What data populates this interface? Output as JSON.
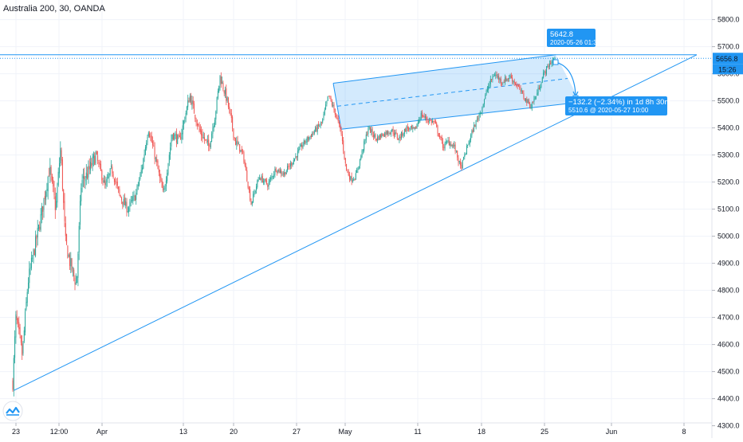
{
  "symbol": {
    "title": "Australia 200, 30, OANDA"
  },
  "colors": {
    "up": "#26a69a",
    "down": "#ef5350",
    "line": "#2196f3",
    "grid": "#f0f3fa",
    "text": "#131722",
    "price_tag": "#2196f3"
  },
  "icons": {
    "logo": "tradingview-logo-icon"
  },
  "price_axis": {
    "ticks": [
      "5800.0",
      "5700.0",
      "5600.0",
      "5500.0",
      "5400.0",
      "5300.0",
      "5200.0",
      "5100.0",
      "5000.0",
      "4900.0",
      "4800.0",
      "4700.0",
      "4600.0",
      "4500.0",
      "4400.0",
      "4300.0"
    ],
    "last_price": "5656.8",
    "countdown": "15:26"
  },
  "time_axis": {
    "ticks": [
      "23",
      "12:00",
      "Apr",
      "13",
      "20",
      "27",
      "May",
      "11",
      "18",
      "25",
      "Jun",
      "8"
    ]
  },
  "annotations": {
    "start_price": "5642.8",
    "start_time": "2020-05-26 01:30",
    "change": "−132.2 (−2.34%) in 1d 8h 30m",
    "end_label": "5510.6 @ 2020-05-27  10:00"
  },
  "chart_data": {
    "type": "candlestick",
    "title": "Australia 200, 30, OANDA",
    "ylim": [
      4300,
      5850
    ],
    "grid": true,
    "x": [
      "Mar 23",
      "Mar 26",
      "Mar 30",
      "Apr 3",
      "Apr 8",
      "Apr 14",
      "Apr 17",
      "Apr 21",
      "Apr 24",
      "Apr 29",
      "May 1",
      "May 4",
      "May 7",
      "May 12",
      "May 15",
      "May 18",
      "May 21",
      "May 25",
      "May 26"
    ],
    "close": [
      4460,
      4980,
      5350,
      5140,
      5360,
      5200,
      5590,
      5120,
      5290,
      5580,
      5300,
      5210,
      5420,
      5430,
      5260,
      5500,
      5650,
      5560,
      5656.8
    ],
    "drawings": {
      "trendline": {
        "from": [
          "Mar 23",
          4430
        ],
        "to": [
          "Jun 9",
          5670
        ]
      },
      "parallel_channel": {
        "upper": [
          [
            5565,
            "Apr 30"
          ],
          [
            5670,
            "May 26"
          ]
        ],
        "lower": [
          [
            5395,
            "Apr 30"
          ],
          [
            5495,
            "May 27"
          ]
        ]
      },
      "horizontal_line": 5670,
      "price_range": {
        "from": 5642.8,
        "to": 5510.6,
        "change": -132.2,
        "change_pct": -2.34
      }
    }
  }
}
